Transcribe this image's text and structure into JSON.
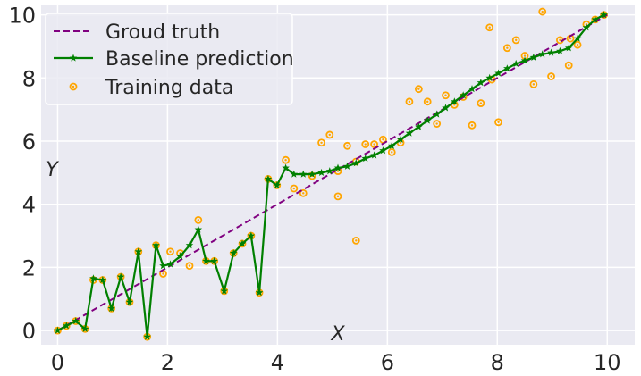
{
  "chart_data": {
    "type": "line",
    "title": "",
    "xlabel": "X",
    "ylabel": "Y",
    "xlim": [
      -0.3,
      10.5
    ],
    "ylim": [
      -0.45,
      10.3
    ],
    "xticks": [
      0,
      2,
      4,
      6,
      8,
      10
    ],
    "yticks": [
      0,
      2,
      4,
      6,
      8,
      10
    ],
    "grid": true,
    "legend_position": "top-left",
    "colors": {
      "background": "#eaeaf2",
      "grid": "#ffffff",
      "ground_truth": "#800080",
      "baseline": "#008000",
      "training_marker": "#ffa500"
    },
    "series": [
      {
        "name": "Groud truth",
        "style": "dashed",
        "x": [
          0,
          10
        ],
        "y": [
          0,
          10
        ]
      },
      {
        "name": "Baseline prediction",
        "style": "solid-star",
        "x": [
          0,
          0.16,
          0.33,
          0.5,
          0.65,
          0.82,
          0.98,
          1.15,
          1.31,
          1.47,
          1.63,
          1.79,
          1.92,
          2.05,
          2.23,
          2.4,
          2.56,
          2.7,
          2.85,
          3.03,
          3.2,
          3.36,
          3.52,
          3.67,
          3.83,
          3.99,
          4.15,
          4.3,
          4.47,
          4.63,
          4.8,
          4.95,
          5.1,
          5.27,
          5.43,
          5.6,
          5.76,
          5.92,
          6.08,
          6.24,
          6.4,
          6.57,
          6.73,
          6.9,
          7.06,
          7.22,
          7.38,
          7.54,
          7.7,
          7.86,
          8.02,
          8.18,
          8.34,
          8.5,
          8.66,
          8.82,
          8.98,
          9.14,
          9.3,
          9.46,
          9.62,
          9.78,
          9.94
        ],
        "y": [
          0,
          0.15,
          0.3,
          0.05,
          1.65,
          1.6,
          0.7,
          1.7,
          0.9,
          2.5,
          -0.2,
          2.7,
          2.05,
          2.1,
          2.35,
          2.7,
          3.2,
          2.2,
          2.2,
          1.25,
          2.45,
          2.75,
          3.0,
          1.2,
          4.8,
          4.6,
          5.15,
          4.95,
          4.95,
          4.95,
          5.0,
          5.05,
          5.15,
          5.2,
          5.3,
          5.45,
          5.55,
          5.7,
          5.85,
          6.05,
          6.25,
          6.45,
          6.65,
          6.85,
          7.05,
          7.25,
          7.45,
          7.65,
          7.85,
          8.0,
          8.15,
          8.3,
          8.45,
          8.55,
          8.65,
          8.75,
          8.8,
          8.85,
          8.95,
          9.25,
          9.6,
          9.85,
          10.0
        ]
      },
      {
        "name": "Training data",
        "style": "scatter",
        "x": [
          0,
          0.16,
          0.33,
          0.5,
          0.65,
          0.82,
          0.98,
          1.15,
          1.31,
          1.47,
          1.63,
          1.79,
          1.92,
          2.05,
          2.23,
          2.4,
          2.56,
          2.7,
          2.85,
          3.03,
          3.2,
          3.36,
          3.52,
          3.67,
          3.83,
          3.99,
          4.15,
          4.3,
          4.47,
          4.63,
          4.8,
          4.95,
          5.1,
          5.27,
          5.43,
          5.6,
          5.76,
          5.92,
          6.08,
          6.24,
          6.4,
          6.57,
          6.73,
          6.9,
          7.06,
          7.22,
          7.38,
          7.54,
          7.7,
          7.86,
          8.02,
          8.18,
          8.34,
          8.5,
          8.66,
          8.82,
          8.98,
          9.14,
          9.3,
          9.46,
          9.62,
          9.78,
          9.94,
          5.1,
          5.43,
          7.9,
          9.33
        ],
        "y": [
          0,
          0.15,
          0.3,
          0.05,
          1.6,
          1.6,
          0.7,
          1.7,
          0.9,
          2.5,
          -0.2,
          2.7,
          1.8,
          2.5,
          2.45,
          2.05,
          3.5,
          2.2,
          2.2,
          1.25,
          2.45,
          2.75,
          3.0,
          1.2,
          4.8,
          4.6,
          5.4,
          4.5,
          4.35,
          4.9,
          5.95,
          6.2,
          4.25,
          5.85,
          2.85,
          5.9,
          5.9,
          6.05,
          5.65,
          5.95,
          7.25,
          7.65,
          7.25,
          6.55,
          7.45,
          7.15,
          7.4,
          6.5,
          7.2,
          9.6,
          6.6,
          8.95,
          9.2,
          8.7,
          7.8,
          10.1,
          8.05,
          9.2,
          8.4,
          9.05,
          9.7,
          9.85,
          10.0,
          5.05,
          5.35,
          7.95,
          9.25
        ]
      }
    ]
  }
}
